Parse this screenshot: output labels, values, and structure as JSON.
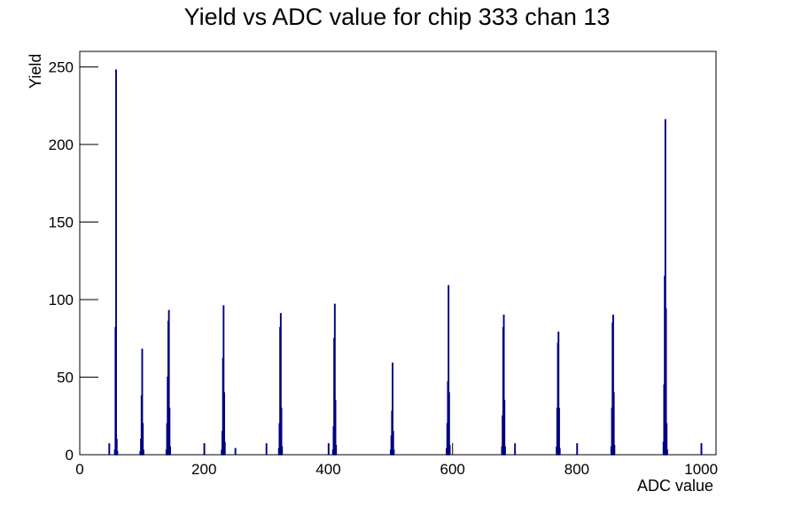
{
  "chart_data": {
    "type": "histogram",
    "title": "Yield vs ADC value for chip 333 chan 13",
    "x_label": "ADC value",
    "y_label": "Yield",
    "color": "#000080",
    "bins": [
      0,
      47,
      48,
      56,
      57,
      58,
      59,
      60,
      61,
      97,
      98,
      99,
      100,
      101,
      102,
      103,
      139,
      140,
      141,
      142,
      143,
      144,
      145,
      146,
      200,
      201,
      228,
      229,
      230,
      231,
      232,
      233,
      234,
      250,
      251,
      300,
      301,
      320,
      321,
      322,
      323,
      324,
      325,
      326,
      400,
      401,
      407,
      408,
      409,
      410,
      411,
      412,
      413,
      500,
      501,
      502,
      503,
      504,
      505,
      506,
      590,
      591,
      592,
      593,
      594,
      595,
      596,
      679,
      680,
      681,
      682,
      683,
      684,
      685,
      700,
      701,
      767,
      768,
      769,
      770,
      771,
      772,
      773,
      800,
      801,
      855,
      856,
      857,
      858,
      859,
      860,
      861,
      939,
      940,
      941,
      942,
      943,
      944,
      945,
      946,
      1000,
      1001,
      1024
    ],
    "counts": [
      0,
      7,
      0,
      3,
      82,
      248,
      10,
      2,
      0,
      2,
      10,
      38,
      68,
      20,
      3,
      0,
      3,
      20,
      50,
      86,
      93,
      30,
      5,
      0,
      7,
      0,
      3,
      15,
      62,
      96,
      40,
      8,
      0,
      4,
      0,
      7,
      0,
      4,
      20,
      82,
      91,
      30,
      5,
      0,
      7,
      0,
      3,
      18,
      75,
      97,
      35,
      6,
      0,
      3,
      12,
      28,
      59,
      15,
      3,
      0,
      4,
      20,
      47,
      109,
      40,
      6,
      0,
      5,
      25,
      82,
      90,
      35,
      5,
      0,
      7,
      0,
      5,
      30,
      72,
      79,
      30,
      4,
      0,
      7,
      0,
      5,
      30,
      85,
      90,
      40,
      6,
      0,
      8,
      45,
      115,
      216,
      94,
      20,
      3,
      0,
      7,
      0
    ],
    "xlim": [
      0,
      1024
    ],
    "xticks": [
      0,
      200,
      400,
      600,
      800,
      1000
    ],
    "ylim": [
      0,
      260
    ],
    "yticks": [
      0,
      50,
      100,
      150,
      200,
      250
    ]
  }
}
